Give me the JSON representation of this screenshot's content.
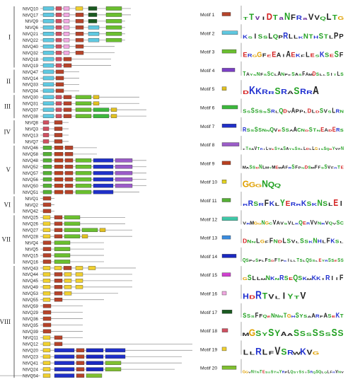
{
  "genes": [
    {
      "name": "NtVQ10",
      "group": "I",
      "motifs": [
        2,
        18,
        16,
        19,
        17,
        3
      ]
    },
    {
      "name": "NtVQ17",
      "group": "I",
      "motifs": [
        2,
        18,
        16,
        1,
        17,
        3
      ]
    },
    {
      "name": "NtVQ9",
      "group": "I",
      "motifs": [
        2,
        18,
        16,
        1,
        17,
        3
      ]
    },
    {
      "name": "NtVQ6",
      "group": "I",
      "motifs": [
        2,
        18,
        16,
        1,
        2,
        3
      ]
    },
    {
      "name": "NtVQ21",
      "group": "I",
      "motifs": [
        2,
        18,
        16,
        1,
        2,
        3
      ]
    },
    {
      "name": "NtVQ22",
      "group": "I",
      "motifs": [
        2,
        18,
        16,
        1,
        2,
        3
      ]
    },
    {
      "name": "NtVQ40",
      "group": "I",
      "motifs": [
        2,
        18,
        16,
        1
      ]
    },
    {
      "name": "NtVQ32",
      "group": "I",
      "motifs": [
        2,
        18,
        16,
        1
      ]
    },
    {
      "name": "NtVQ18",
      "group": "I",
      "motifs": [
        2,
        18,
        1
      ]
    },
    {
      "name": "NtVQ19",
      "group": "I",
      "motifs": [
        2,
        18,
        1
      ]
    },
    {
      "name": "NtVQ47",
      "group": "II",
      "motifs": [
        2,
        1
      ]
    },
    {
      "name": "NtVQ14",
      "group": "II",
      "motifs": [
        2,
        1
      ]
    },
    {
      "name": "NtVQ33",
      "group": "II",
      "motifs": [
        2,
        1
      ]
    },
    {
      "name": "NtVQ34",
      "group": "II",
      "motifs": [
        2,
        1
      ]
    },
    {
      "name": "NtVQ30",
      "group": "III",
      "motifs": [
        2,
        18,
        1,
        3,
        5
      ]
    },
    {
      "name": "NtVQ31",
      "group": "III",
      "motifs": [
        2,
        18,
        1,
        3,
        5
      ]
    },
    {
      "name": "NtVQ37",
      "group": "III",
      "motifs": [
        2,
        18,
        1,
        3,
        6,
        5
      ]
    },
    {
      "name": "NtVQ38",
      "group": "III",
      "motifs": [
        2,
        18,
        1,
        3,
        6,
        5
      ]
    },
    {
      "name": "NtVQ8",
      "group": "IV",
      "motifs": [
        18,
        1
      ]
    },
    {
      "name": "NtVQ3",
      "group": "IV",
      "motifs": [
        18,
        1
      ]
    },
    {
      "name": "NtVQ13",
      "group": "IV",
      "motifs": [
        18,
        1
      ]
    },
    {
      "name": "NtVQ7",
      "group": "IV",
      "motifs": [
        18,
        1
      ]
    },
    {
      "name": "NtVQ46",
      "group": "V",
      "motifs": [
        11,
        9,
        1
      ]
    },
    {
      "name": "NtVQ58",
      "group": "V",
      "motifs": [
        11,
        9,
        1
      ]
    },
    {
      "name": "NtVQ48",
      "group": "V",
      "motifs": [
        11,
        9,
        1,
        3,
        7,
        8
      ]
    },
    {
      "name": "NtVQ52",
      "group": "V",
      "motifs": [
        11,
        9,
        1,
        3,
        7,
        8
      ]
    },
    {
      "name": "NtVQ57",
      "group": "V",
      "motifs": [
        11,
        9,
        1,
        3,
        7,
        8
      ]
    },
    {
      "name": "NtVQ56",
      "group": "V",
      "motifs": [
        11,
        9,
        1,
        3,
        7,
        8
      ]
    },
    {
      "name": "NtVQ50",
      "group": "V",
      "motifs": [
        11,
        9,
        1,
        3,
        7,
        8
      ]
    },
    {
      "name": "NtVQ51",
      "group": "V",
      "motifs": [
        11,
        9,
        1,
        3,
        7
      ]
    },
    {
      "name": "NtVQ1",
      "group": "VI",
      "motifs": [
        1
      ]
    },
    {
      "name": "NtVQ2",
      "group": "VI",
      "motifs": [
        1
      ]
    },
    {
      "name": "NtVQ42",
      "group": "VI",
      "motifs": [
        1
      ]
    },
    {
      "name": "NtVQ25",
      "group": "VII",
      "motifs": [
        19,
        1,
        3
      ]
    },
    {
      "name": "NtVQ26",
      "group": "VII",
      "motifs": [
        19,
        1,
        3
      ]
    },
    {
      "name": "NtVQ27",
      "group": "VII",
      "motifs": [
        19,
        1,
        3,
        3,
        5
      ]
    },
    {
      "name": "NtVQ28",
      "group": "VII",
      "motifs": [
        19,
        1,
        3,
        5
      ]
    },
    {
      "name": "NtVQ4",
      "group": "VII",
      "motifs": [
        1,
        3
      ]
    },
    {
      "name": "NtVQ5",
      "group": "VII",
      "motifs": [
        1,
        3
      ]
    },
    {
      "name": "NtVQ15",
      "group": "VII",
      "motifs": [
        1,
        3
      ]
    },
    {
      "name": "NtVQ16",
      "group": "VII",
      "motifs": [
        1,
        3
      ]
    },
    {
      "name": "NtVQ43",
      "group": "VIII",
      "motifs": [
        19,
        19,
        1,
        19,
        19
      ]
    },
    {
      "name": "NtVQ44",
      "group": "VIII",
      "motifs": [
        19,
        1,
        19,
        19
      ]
    },
    {
      "name": "NtVQ45",
      "group": "VIII",
      "motifs": [
        19,
        1,
        19,
        19
      ]
    },
    {
      "name": "NtVQ49",
      "group": "VIII",
      "motifs": [
        19,
        1,
        19,
        19
      ]
    },
    {
      "name": "NtVQ53",
      "group": "VIII",
      "motifs": [
        19,
        1,
        19
      ]
    },
    {
      "name": "NtVQ55",
      "group": "VIII",
      "motifs": [
        19,
        1
      ]
    },
    {
      "name": "NtVQ59",
      "group": "VIII",
      "motifs": [
        1
      ]
    },
    {
      "name": "NtVQ29",
      "group": "VIII",
      "motifs": [
        1
      ]
    },
    {
      "name": "NtVQ36",
      "group": "VIII",
      "motifs": [
        1
      ]
    },
    {
      "name": "NtVQ35",
      "group": "VIII",
      "motifs": [
        1
      ]
    },
    {
      "name": "NtVQ39",
      "group": "VIII",
      "motifs": [
        1
      ]
    },
    {
      "name": "NtVQ11",
      "group": "VIII",
      "motifs": [
        19,
        1
      ]
    },
    {
      "name": "NtVQ12",
      "group": "VIII",
      "motifs": [
        19,
        1
      ]
    },
    {
      "name": "NtVQ20",
      "group": "VIII",
      "motifs": [
        19,
        7,
        1,
        14,
        7
      ]
    },
    {
      "name": "NtVQ23",
      "group": "VIII",
      "motifs": [
        19,
        7,
        1,
        14,
        7
      ]
    },
    {
      "name": "NtVQ41",
      "group": "VIII",
      "motifs": [
        19,
        7,
        1,
        14,
        20
      ]
    },
    {
      "name": "NtVQ24",
      "group": "VIII",
      "motifs": [
        19,
        7,
        1,
        14,
        20
      ]
    },
    {
      "name": "NtVQ54",
      "group": "VIII",
      "motifs": [
        19,
        7,
        1,
        20
      ]
    }
  ],
  "groups": [
    "I",
    "II",
    "III",
    "IV",
    "V",
    "VI",
    "VII",
    "VIII"
  ],
  "motifs": [
    {
      "label": "Motif 1",
      "color": "#b5432a",
      "seq": "TTvIDTaNFRaVVQLTG"
    },
    {
      "label": "Motif 2",
      "color": "#5fc8e0",
      "seq": "KSISSLQPRLLKNTHSTLPP"
    },
    {
      "label": "Motif 3",
      "color": "#6abf2f",
      "seq": "ERGGFEEAIAEKFLESKSESF"
    },
    {
      "label": "Motif 4",
      "color": "#7b3fc4",
      "seq": "TAYSNFSSCLANPFSASFAMDSLLSITLS"
    },
    {
      "label": "Motif 5",
      "color": "#e0c020",
      "seq": "DKKRRSRASRRA"
    },
    {
      "label": "Motif 6",
      "color": "#3cb83c",
      "seq": "SSSSSSSRLQDVAPPLDLDSVSLRN"
    },
    {
      "label": "Motif 7",
      "color": "#2030c8",
      "seq": "RSSSSNNQVESSAACNDSTNEADERS"
    },
    {
      "label": "Motif 8",
      "color": "#9b5cc8",
      "seq": "FTSAVTRILVESTASAYSSSLLDLLGISSQDYVFN"
    },
    {
      "label": "Motif 9",
      "color": "#b84020",
      "seq": "MASSDNLMTMEWAFRSFPNDSMFFSSVFRTE"
    },
    {
      "label": "Motif 10",
      "color": "#e0d020",
      "seq": "GGGNQQ"
    },
    {
      "label": "Motif 11",
      "color": "#55b035",
      "seq": "RRSRFKLYERRKSKNSLEI"
    },
    {
      "label": "Motif 12",
      "color": "#40c8a8",
      "seq": "VRMGGNGCVAVSVLKQERVVNRVQVSC"
    },
    {
      "label": "Motif 13",
      "color": "#3a8ce0",
      "seq": "DNNLGFFNDLSVLSSKNHLFKSL"
    },
    {
      "label": "Motif 14",
      "color": "#1a28c0",
      "seq": "QSPVSPLFSDFTPKILLTSLQSSLEYRSSESS"
    },
    {
      "label": "Motif 15",
      "color": "#d040d0",
      "seq": "GSLLMNKNRSEQSKMKKIRIIF"
    },
    {
      "label": "Motif 16",
      "color": "#f0a8e0",
      "seq": "HDRTVLIYTV"
    },
    {
      "label": "Motif 17",
      "color": "#1a5a20",
      "seq": "SSSFFQENNNTGHSYSAARFASEKT"
    },
    {
      "label": "Motif 18",
      "color": "#d05060",
      "seq": "MGSYSYAASSSSSSSS"
    },
    {
      "label": "Motif 19",
      "color": "#f0d030",
      "seq": "LLRLFVSRWKVG"
    },
    {
      "label": "Motif 20",
      "color": "#80c030",
      "seq": "GGVNTNTESSSYNYRPLQSTSSISRQSQLQLFRVNV"
    }
  ]
}
